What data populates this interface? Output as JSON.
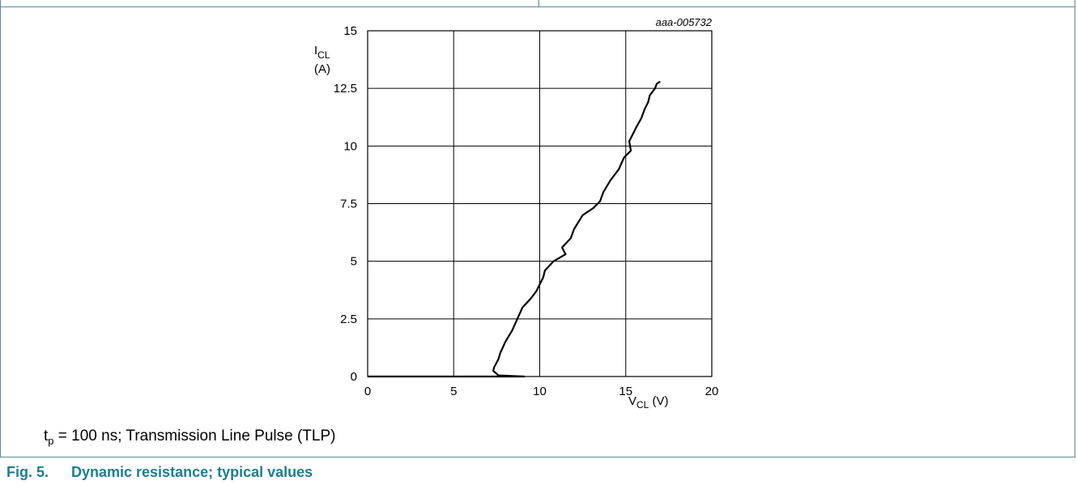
{
  "chart_data": {
    "type": "line",
    "code": "aaa-005732",
    "ylabel_main": "I",
    "ylabel_sub": "CL",
    "ylabel_unit": "(A)",
    "xlabel_main": "V",
    "xlabel_sub": "CL",
    "xlabel_unit": " (V)",
    "xlim": [
      0,
      20
    ],
    "ylim": [
      0,
      15
    ],
    "xticks": [
      0,
      5,
      10,
      15,
      20
    ],
    "yticks": [
      0,
      2.5,
      5,
      7.5,
      10,
      12.5,
      15
    ],
    "grid": true,
    "series": [
      {
        "points": [
          [
            0,
            0
          ],
          [
            7.5,
            0
          ],
          [
            9.1,
            0.0
          ],
          [
            7.6,
            0.05
          ],
          [
            7.3,
            0.25
          ],
          [
            7.35,
            0.4
          ],
          [
            7.6,
            0.75
          ],
          [
            7.7,
            1.0
          ],
          [
            8.0,
            1.5
          ],
          [
            8.4,
            2.0
          ],
          [
            8.7,
            2.5
          ],
          [
            9.0,
            3.0
          ],
          [
            9.5,
            3.4
          ],
          [
            9.8,
            3.7
          ],
          [
            10.2,
            4.3
          ],
          [
            10.3,
            4.6
          ],
          [
            10.8,
            5.0
          ],
          [
            11.5,
            5.3
          ],
          [
            11.3,
            5.6
          ],
          [
            11.8,
            6.0
          ],
          [
            12.0,
            6.4
          ],
          [
            12.5,
            7.0
          ],
          [
            13.1,
            7.3
          ],
          [
            13.5,
            7.6
          ],
          [
            13.7,
            8.0
          ],
          [
            14.1,
            8.5
          ],
          [
            14.6,
            9.0
          ],
          [
            14.9,
            9.5
          ],
          [
            15.3,
            9.8
          ],
          [
            15.2,
            10.2
          ],
          [
            15.6,
            10.8
          ],
          [
            15.9,
            11.2
          ],
          [
            16.1,
            11.6
          ],
          [
            16.3,
            11.9
          ],
          [
            16.4,
            12.2
          ],
          [
            16.7,
            12.5
          ],
          [
            16.8,
            12.7
          ],
          [
            17.0,
            12.8
          ]
        ]
      }
    ]
  },
  "condition": {
    "t": "t",
    "t_sub": "p",
    "text": " = 100 ns; Transmission Line Pulse (TLP)"
  },
  "caption": {
    "number": "Fig. 5.",
    "title": "Dynamic resistance; typical values"
  }
}
